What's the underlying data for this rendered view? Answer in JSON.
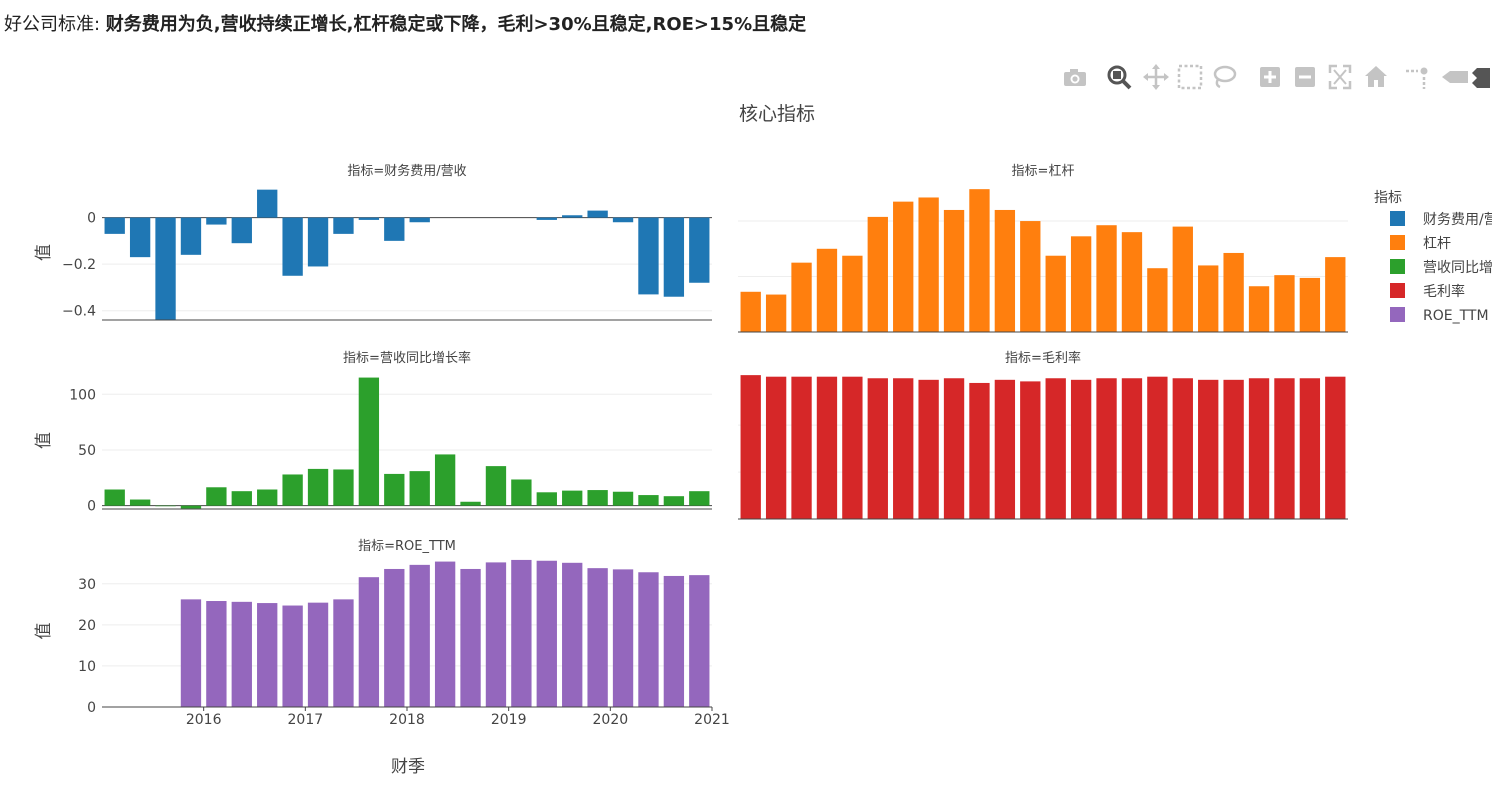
{
  "page": {
    "heading_prefix": "好公司标准: ",
    "heading_bold": "财务费用为负,营收持续正增长,杠杆稳定或下降，毛利>30%且稳定,ROE>15%且稳定"
  },
  "modebar": {
    "icons": [
      "camera-icon",
      "zoom-icon",
      "pan-icon",
      "box-select-icon",
      "lasso-icon",
      "zoom-in-icon",
      "zoom-out-icon",
      "autoscale-icon",
      "reset-axes-icon",
      "spike-lines-icon",
      "hover-closest-icon",
      "hover-compare-icon"
    ]
  },
  "chart_data": {
    "type": "bar",
    "title": "核心指标",
    "xlabel": "财季",
    "ylabel": "值",
    "x_tick_labels": [
      "2016",
      "2017",
      "2018",
      "2019",
      "2020",
      "2021"
    ],
    "x_tick_positions": [
      4,
      8,
      12,
      16,
      20,
      24
    ],
    "quarter_count": 24,
    "legend": {
      "title": "指标",
      "placement": "right",
      "items": [
        {
          "name": "财务费用/营",
          "color": "#1f77b4"
        },
        {
          "name": "杠杆",
          "color": "#ff7f0e"
        },
        {
          "name": "营收同比增",
          "color": "#2ca02c"
        },
        {
          "name": "毛利率",
          "color": "#d62728"
        },
        {
          "name": "ROE_TTM",
          "color": "#9467bd"
        }
      ]
    },
    "panels": [
      {
        "key": "fee",
        "subtitle": "指标=财务费用/营收",
        "name": "财务费用/营收",
        "color": "#1f77b4",
        "ylim": [
          -0.44,
          0.14
        ],
        "yticks": [
          0,
          -0.2,
          -0.4
        ],
        "ytick_labels": [
          "0",
          "−0.2",
          "−0.4"
        ],
        "values": [
          -0.07,
          -0.17,
          -0.44,
          -0.16,
          -0.03,
          -0.11,
          0.12,
          -0.25,
          -0.21,
          -0.07,
          -0.01,
          -0.1,
          -0.02,
          0,
          0,
          0,
          0,
          -0.01,
          0.01,
          0.03,
          -0.02,
          -0.33,
          -0.34,
          -0.28
        ]
      },
      {
        "key": "lev",
        "subtitle": "指标=杠杆",
        "name": "杠杆",
        "color": "#ff7f0e",
        "ylim": [
          0,
          1.06
        ],
        "yticks": [
          0.4,
          0.8
        ],
        "ytick_labels": [
          "",
          ""
        ],
        "values": [
          0.29,
          0.27,
          0.5,
          0.6,
          0.55,
          0.83,
          0.94,
          0.97,
          0.88,
          1.03,
          0.88,
          0.8,
          0.55,
          0.69,
          0.77,
          0.72,
          0.46,
          0.76,
          0.48,
          0.57,
          0.33,
          0.41,
          0.39,
          0.54
        ]
      },
      {
        "key": "rev",
        "subtitle": "指标=营收同比增长率",
        "name": "营收同比增长率",
        "color": "#2ca02c",
        "ylim": [
          -3,
          120
        ],
        "yticks": [
          0,
          50,
          100
        ],
        "ytick_labels": [
          "0",
          "50",
          "100"
        ],
        "values": [
          14.5,
          5.5,
          -0.5,
          -2.5,
          16.5,
          13,
          14.5,
          28,
          33,
          32.5,
          115,
          28.5,
          31,
          46,
          3.5,
          35.5,
          23.5,
          12,
          13.5,
          14,
          12.5,
          9.5,
          8.5,
          13
        ]
      },
      {
        "key": "gm",
        "subtitle": "指标=毛利率",
        "name": "毛利率",
        "color": "#d62728",
        "ylim": [
          0,
          0.94
        ],
        "yticks": [
          0.3,
          0.6
        ],
        "ytick_labels": [
          "",
          ""
        ],
        "values": [
          0.92,
          0.91,
          0.91,
          0.91,
          0.91,
          0.9,
          0.9,
          0.89,
          0.9,
          0.87,
          0.89,
          0.88,
          0.9,
          0.89,
          0.9,
          0.9,
          0.91,
          0.9,
          0.89,
          0.89,
          0.9,
          0.9,
          0.9,
          0.91
        ]
      },
      {
        "key": "roe",
        "subtitle": "指标=ROE_TTM",
        "name": "ROE_TTM",
        "color": "#9467bd",
        "ylim": [
          0,
          37
        ],
        "yticks": [
          0,
          10,
          20,
          30
        ],
        "ytick_labels": [
          "0",
          "10",
          "20",
          "30"
        ],
        "values": [
          null,
          null,
          null,
          26.2,
          25.8,
          25.6,
          25.3,
          24.7,
          25.4,
          26.2,
          31.6,
          33.6,
          34.6,
          35.4,
          33.6,
          35.2,
          35.8,
          35.6,
          35.1,
          33.8,
          33.5,
          32.8,
          31.9,
          32.1
        ]
      }
    ]
  }
}
